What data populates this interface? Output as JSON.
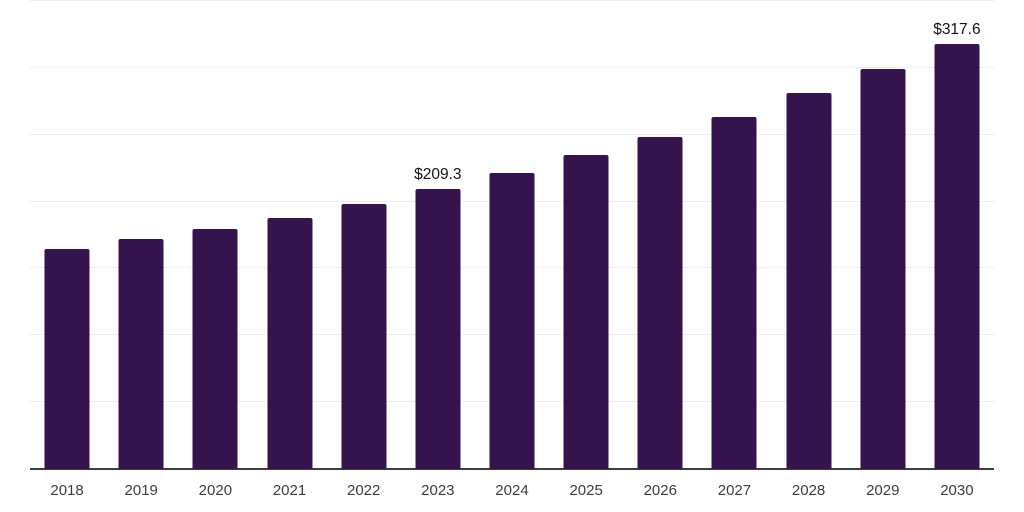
{
  "chart_data": {
    "type": "bar",
    "title": "",
    "xlabel": "",
    "ylabel": "",
    "categories": [
      "2018",
      "2019",
      "2020",
      "2021",
      "2022",
      "2023",
      "2024",
      "2025",
      "2026",
      "2027",
      "2028",
      "2029",
      "2030"
    ],
    "values": [
      164.4,
      171.9,
      179.4,
      187.6,
      198.3,
      209.3,
      221.5,
      234.6,
      248.0,
      263.6,
      281.1,
      299.1,
      317.6
    ],
    "data_labels": [
      "",
      "",
      "",
      "",
      "",
      "$209.3",
      "",
      "",
      "",
      "",
      "",
      "",
      "$317.6"
    ],
    "value_prefix": "$",
    "ylim": [
      0,
      350
    ],
    "grid_step": 50,
    "grid": true,
    "legend": false,
    "colors": {
      "bar": "#35134d",
      "gridline": "#ededed",
      "axis_line": "#3e3e3e",
      "tick_label": "#3d3d3d",
      "value_label": "#141414",
      "background": "#ffffff"
    }
  }
}
